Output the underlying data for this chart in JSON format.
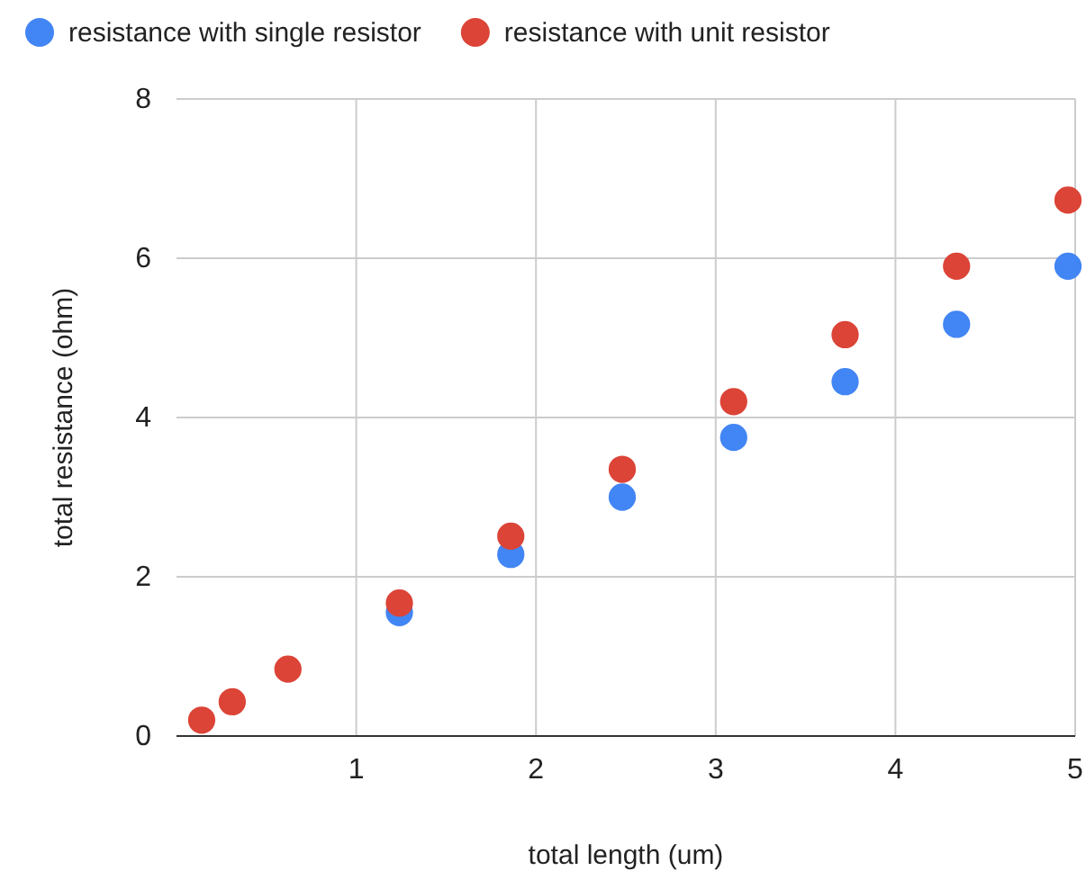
{
  "chart_data": {
    "type": "scatter",
    "xlabel": "total length (um)",
    "ylabel": "total resistance (ohm)",
    "xlim": [
      0,
      5
    ],
    "xticks": [
      1,
      2,
      3,
      4,
      5
    ],
    "ylim": [
      0,
      8
    ],
    "yticks": [
      0,
      2,
      4,
      6,
      8
    ],
    "grid": true,
    "legend": "top left",
    "marker": "circle",
    "series": [
      {
        "name": "resistance with single resistor",
        "color": "#4285f4",
        "x": [
          1.24,
          1.86,
          2.48,
          3.1,
          3.72,
          4.34,
          4.96
        ],
        "values": [
          1.55,
          2.28,
          3.0,
          3.75,
          4.45,
          5.17,
          5.9
        ]
      },
      {
        "name": "resistance with unit resistor",
        "color": "#db4437",
        "x": [
          0.14,
          0.31,
          0.62,
          1.24,
          1.86,
          2.48,
          3.1,
          3.72,
          4.34,
          4.96
        ],
        "values": [
          0.2,
          0.43,
          0.84,
          1.67,
          2.51,
          3.35,
          4.2,
          5.04,
          5.9,
          6.73
        ]
      }
    ]
  }
}
